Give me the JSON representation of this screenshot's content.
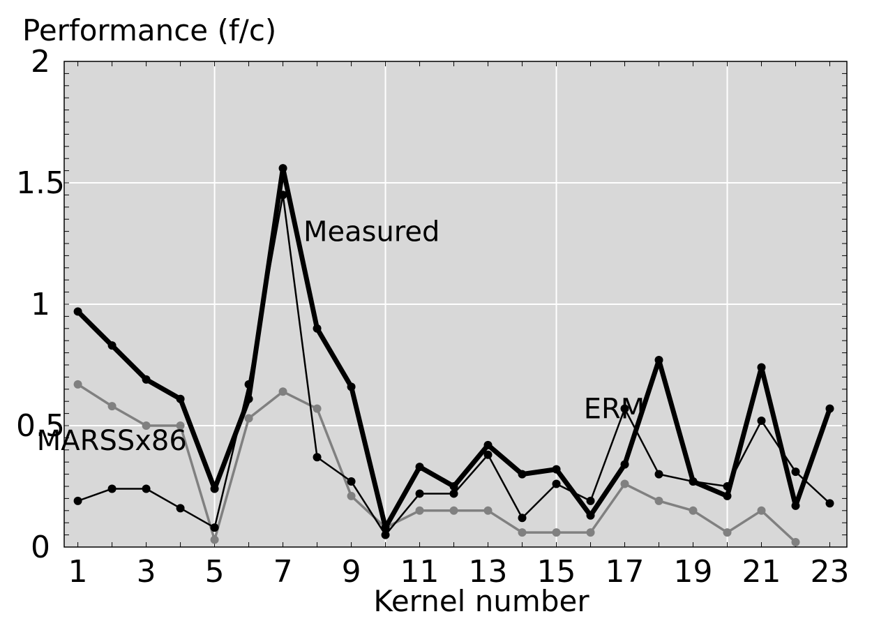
{
  "chart_data": {
    "type": "line",
    "title": "",
    "ylabel": "Performance (f/c)",
    "xlabel": "Kernel number",
    "xlim": [
      0.6,
      23.5
    ],
    "ylim": [
      0,
      2
    ],
    "xticks": [
      1,
      3,
      5,
      7,
      9,
      11,
      13,
      15,
      17,
      19,
      21,
      23
    ],
    "yticks": [
      0,
      0.5,
      1,
      1.5,
      2
    ],
    "ytick_labels": [
      "0",
      "0.5",
      "1",
      "1.5",
      "2"
    ],
    "grid": true,
    "background": "#d8d8d8",
    "annotations": [
      {
        "text": "Measured",
        "x": 7.6,
        "y": 1.26
      },
      {
        "text": "ERM",
        "x": 15.8,
        "y": 0.53
      },
      {
        "text": "MARSSx86",
        "x": -0.2,
        "y": 0.4
      }
    ],
    "series": [
      {
        "name": "Measured",
        "color": "#000000",
        "width": 7,
        "x": [
          1,
          2,
          3,
          4,
          5,
          6,
          7,
          8,
          9,
          10,
          11,
          12,
          13,
          14,
          15,
          16,
          17,
          18,
          19,
          20,
          21,
          22,
          23
        ],
        "values": [
          0.97,
          0.83,
          0.69,
          0.61,
          0.24,
          0.61,
          1.56,
          0.9,
          0.66,
          0.08,
          0.33,
          0.25,
          0.42,
          0.3,
          0.32,
          0.13,
          0.34,
          0.77,
          0.27,
          0.21,
          0.74,
          0.17,
          0.57
        ]
      },
      {
        "name": "ERM",
        "color": "#000000",
        "width": 2.5,
        "x": [
          1,
          2,
          3,
          4,
          5,
          6,
          7,
          8,
          9,
          10,
          11,
          12,
          13,
          14,
          15,
          16,
          17,
          18,
          19,
          20,
          21,
          22,
          23
        ],
        "values": [
          0.19,
          0.24,
          0.24,
          0.16,
          0.08,
          0.67,
          1.45,
          0.37,
          0.27,
          0.05,
          0.22,
          0.22,
          0.38,
          0.12,
          0.26,
          0.19,
          0.57,
          0.3,
          0.27,
          0.25,
          0.52,
          0.31,
          0.18
        ]
      },
      {
        "name": "MARSSx86",
        "color": "#808080",
        "width": 3.5,
        "x": [
          1,
          2,
          3,
          4,
          5,
          6,
          7,
          8,
          9,
          10,
          11,
          12,
          13,
          14,
          15,
          16,
          17,
          18,
          19,
          20,
          21,
          22
        ],
        "values": [
          0.67,
          0.58,
          0.5,
          0.5,
          0.03,
          0.53,
          0.64,
          0.57,
          0.21,
          0.08,
          0.15,
          0.15,
          0.15,
          0.06,
          0.06,
          0.06,
          0.26,
          0.19,
          0.15,
          0.06,
          0.15,
          0.02
        ]
      }
    ]
  }
}
